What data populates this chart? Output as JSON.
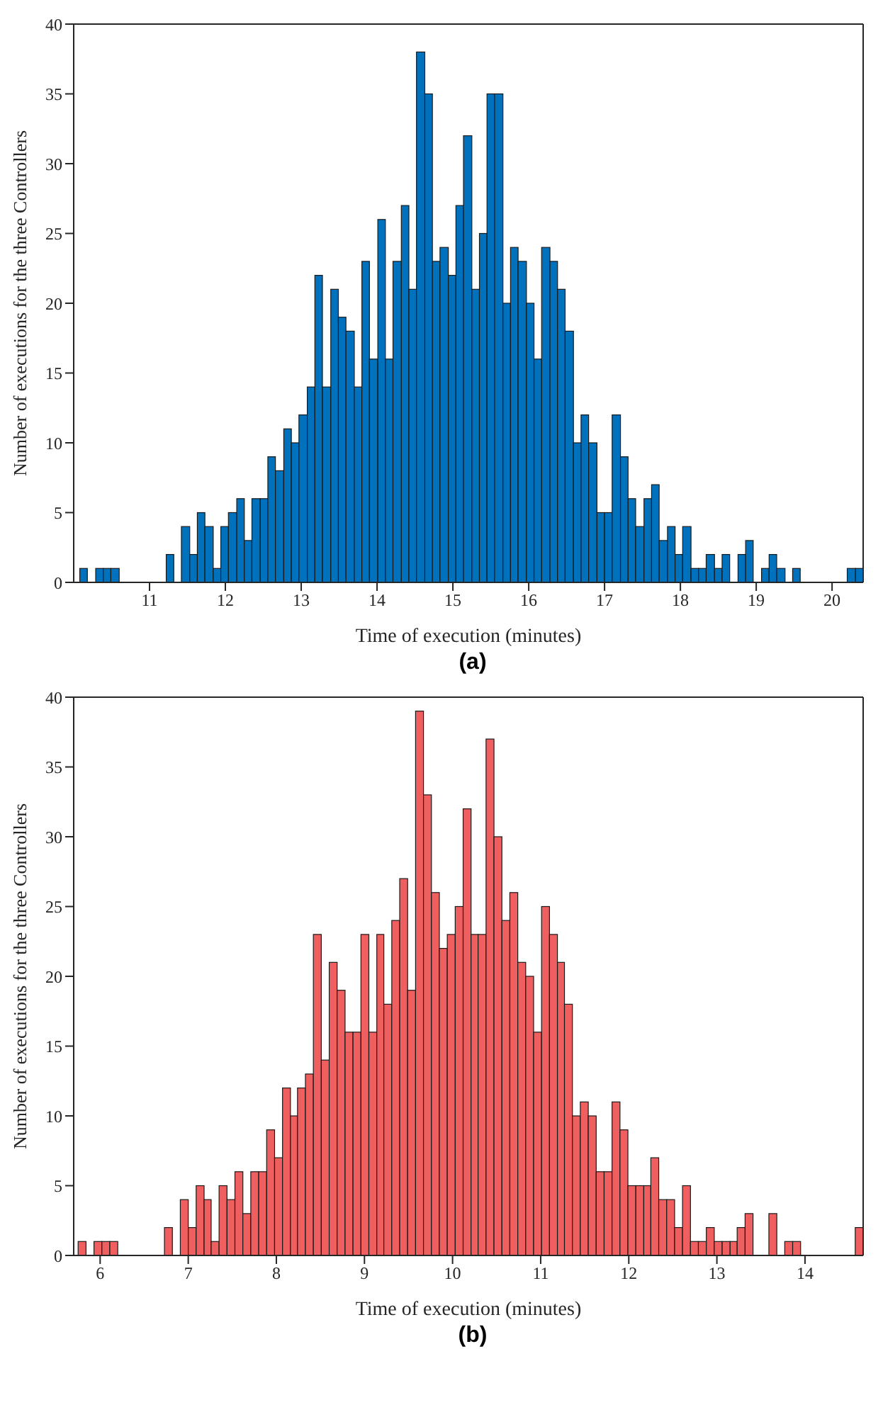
{
  "chart_data": [
    {
      "type": "histogram",
      "title": "(a)",
      "xlabel": "Time of execution (minutes)",
      "ylabel": "Number of executions for the three Controllers",
      "color": "#0072bd",
      "bins": [
        10.08,
        10.18,
        10.29,
        10.39,
        10.49,
        10.6,
        11.22,
        11.32,
        11.42,
        11.53,
        11.63,
        11.73,
        11.84,
        11.94,
        12.04,
        12.15,
        12.25,
        12.35,
        12.46,
        12.56,
        12.66,
        12.77,
        12.87,
        12.97,
        13.08,
        13.18,
        13.28,
        13.39,
        13.49,
        13.59,
        13.7,
        13.8,
        13.9,
        14.01,
        14.11,
        14.21,
        14.32,
        14.42,
        14.52,
        14.63,
        14.73,
        14.83,
        14.94,
        15.04,
        15.14,
        15.25,
        15.35,
        15.45,
        15.55,
        15.66,
        15.76,
        15.86,
        15.97,
        16.07,
        16.17,
        16.28,
        16.38,
        16.48,
        16.59,
        16.69,
        16.79,
        16.9,
        17.0,
        17.1,
        17.21,
        17.31,
        17.41,
        17.52,
        17.62,
        17.72,
        17.83,
        17.93,
        18.03,
        18.14,
        18.24,
        18.34,
        18.45,
        18.55,
        18.65,
        18.76,
        18.86,
        18.96,
        19.07,
        19.17,
        19.27,
        19.38,
        19.48,
        19.58,
        20.2,
        20.31,
        20.41
      ],
      "values": [
        1,
        0,
        1,
        1,
        1,
        0,
        2,
        0,
        4,
        2,
        5,
        4,
        1,
        4,
        5,
        6,
        3,
        6,
        6,
        9,
        8,
        11,
        10,
        12,
        14,
        22,
        14,
        21,
        19,
        18,
        14,
        23,
        16,
        26,
        16,
        23,
        27,
        21,
        38,
        35,
        23,
        24,
        22,
        27,
        32,
        21,
        25,
        35,
        35,
        20,
        24,
        23,
        20,
        16,
        24,
        23,
        21,
        18,
        10,
        12,
        10,
        5,
        5,
        12,
        9,
        6,
        4,
        6,
        7,
        3,
        4,
        2,
        4,
        1,
        1,
        2,
        1,
        2,
        0,
        2,
        3,
        0,
        1,
        2,
        1,
        0,
        1,
        0,
        1,
        1
      ],
      "xlim": [
        10.0,
        20.41
      ],
      "xticks": [
        11,
        12,
        13,
        14,
        15,
        16,
        17,
        18,
        19,
        20
      ],
      "ylim": [
        0,
        40
      ],
      "yticks": [
        0,
        5,
        10,
        15,
        20,
        25,
        30,
        35,
        40
      ]
    },
    {
      "type": "histogram",
      "title": "(b)",
      "xlabel": "Time of execution (minutes)",
      "ylabel": "Number of executions for the three Controllers",
      "color": "#f05f5f",
      "bins": [
        5.75,
        5.84,
        5.93,
        6.02,
        6.11,
        6.2,
        6.73,
        6.82,
        6.91,
        7.0,
        7.09,
        7.18,
        7.26,
        7.35,
        7.44,
        7.53,
        7.62,
        7.71,
        7.8,
        7.89,
        7.98,
        8.07,
        8.16,
        8.24,
        8.33,
        8.42,
        8.51,
        8.6,
        8.69,
        8.78,
        8.87,
        8.96,
        9.05,
        9.14,
        9.22,
        9.31,
        9.4,
        9.49,
        9.58,
        9.67,
        9.76,
        9.85,
        9.94,
        10.03,
        10.12,
        10.21,
        10.29,
        10.38,
        10.47,
        10.56,
        10.65,
        10.74,
        10.83,
        10.92,
        11.01,
        11.1,
        11.19,
        11.27,
        11.36,
        11.45,
        11.54,
        11.63,
        11.72,
        11.81,
        11.9,
        11.99,
        12.08,
        12.17,
        12.25,
        12.34,
        12.43,
        12.52,
        12.61,
        12.7,
        12.79,
        12.88,
        12.97,
        13.06,
        13.15,
        13.23,
        13.32,
        13.41,
        13.59,
        13.68,
        13.77,
        13.86,
        13.95,
        14.57,
        14.66
      ],
      "values": [
        1,
        0,
        1,
        1,
        1,
        0,
        2,
        0,
        4,
        2,
        5,
        4,
        1,
        5,
        4,
        6,
        3,
        6,
        6,
        9,
        7,
        12,
        10,
        12,
        13,
        23,
        14,
        21,
        19,
        16,
        16,
        23,
        16,
        23,
        18,
        24,
        27,
        19,
        39,
        33,
        26,
        22,
        23,
        25,
        32,
        23,
        23,
        37,
        30,
        24,
        26,
        21,
        20,
        16,
        25,
        23,
        21,
        18,
        10,
        11,
        10,
        6,
        6,
        11,
        9,
        5,
        5,
        5,
        7,
        4,
        4,
        2,
        5,
        1,
        1,
        2,
        1,
        1,
        1,
        2,
        3,
        0,
        3,
        0,
        1,
        1,
        0,
        2
      ],
      "xlim": [
        5.7,
        14.66
      ],
      "xticks": [
        6,
        7,
        8,
        9,
        10,
        11,
        12,
        13,
        14
      ],
      "ylim": [
        0,
        40
      ],
      "yticks": [
        0,
        5,
        10,
        15,
        20,
        25,
        30,
        35,
        40
      ]
    }
  ]
}
